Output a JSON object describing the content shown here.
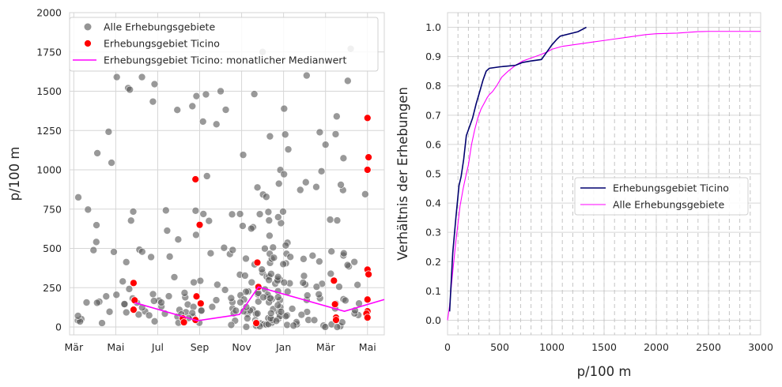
{
  "colors": {
    "all_points": "#5a5a5a",
    "ticino_points": "#ff0000",
    "median_line": "#ff00ff",
    "ecdf_ticino": "#00006e",
    "ecdf_all": "#ff00ff",
    "grid": "#d6d6d6"
  },
  "chart_data": [
    {
      "type": "scatter",
      "xlabel": "",
      "ylabel": "p/100 m",
      "ylim": [
        -50,
        2000
      ],
      "yticks": [
        0,
        250,
        500,
        750,
        1000,
        1250,
        1500,
        1750,
        2000
      ],
      "xlim_months": [
        -0.2,
        14.8
      ],
      "xticks": [
        {
          "pos": 0,
          "label": "Mär"
        },
        {
          "pos": 2,
          "label": "Mai"
        },
        {
          "pos": 4,
          "label": "Jul"
        },
        {
          "pos": 6,
          "label": "Sep"
        },
        {
          "pos": 8,
          "label": "Nov"
        },
        {
          "pos": 10,
          "label": "Jan"
        },
        {
          "pos": 12,
          "label": "Mär"
        },
        {
          "pos": 14,
          "label": "Mai"
        }
      ],
      "grid": true,
      "legend_position": "top-left",
      "series": [
        {
          "name": "Alle Erhebungsgebiete",
          "marker": "circle",
          "points": []
        },
        {
          "name": "Erhebungsgebiet Ticino",
          "marker": "circle",
          "points": [
            [
              2.85,
              280
            ],
            [
              2.9,
              170
            ],
            [
              2.85,
              110
            ],
            [
              5.2,
              55
            ],
            [
              5.25,
              30
            ],
            [
              5.8,
              940
            ],
            [
              5.85,
              195
            ],
            [
              5.8,
              45
            ],
            [
              6.0,
              650
            ],
            [
              6.05,
              150
            ],
            [
              8.75,
              410
            ],
            [
              8.8,
              255
            ],
            [
              8.7,
              25
            ],
            [
              12.4,
              295
            ],
            [
              12.45,
              145
            ],
            [
              12.5,
              60
            ],
            [
              12.5,
              45
            ],
            [
              14.0,
              1330
            ],
            [
              14.05,
              1080
            ],
            [
              14.0,
              1000
            ],
            [
              14.0,
              365
            ],
            [
              14.05,
              335
            ],
            [
              14.0,
              175
            ],
            [
              14.0,
              100
            ],
            [
              13.95,
              85
            ],
            [
              14.0,
              60
            ]
          ]
        },
        {
          "name": "Erhebungsgebiet Ticino: monatlicher Medianwert",
          "marker": "line",
          "points": [
            [
              2.9,
              155
            ],
            [
              5.9,
              40
            ],
            [
              7.9,
              80
            ],
            [
              8.8,
              255
            ],
            [
              12.9,
              100
            ],
            [
              14.8,
              175
            ]
          ]
        }
      ]
    },
    {
      "type": "line",
      "xlabel": "p/100 m",
      "ylabel": "Verhältnis der Erhebungen",
      "xlim": [
        0,
        3000
      ],
      "ylim": [
        -0.05,
        1.05
      ],
      "xticks": [
        0,
        500,
        1000,
        1500,
        2000,
        2500,
        3000
      ],
      "yticks": [
        0.0,
        0.1,
        0.2,
        0.3,
        0.4,
        0.5,
        0.6,
        0.7,
        0.8,
        0.9,
        1.0
      ],
      "vertical_dashed_lines": [
        100,
        200,
        300,
        400,
        500,
        600,
        700,
        800,
        900,
        1000,
        1100,
        1200,
        1300,
        1400,
        1500,
        1600,
        1700,
        1800,
        1900,
        2000,
        2100,
        2200,
        2300,
        2400,
        2500,
        2600,
        2700,
        2800,
        2900
      ],
      "grid": true,
      "legend_position": "center-right",
      "series": [
        {
          "name": "Erhebungsgebiet Ticino",
          "x": [
            20,
            50,
            80,
            110,
            130,
            155,
            180,
            200,
            240,
            275,
            300,
            340,
            370,
            400,
            500,
            650,
            720,
            800,
            900,
            940,
            1000,
            1050,
            1080,
            1250,
            1330
          ],
          "y": [
            0.03,
            0.23,
            0.35,
            0.46,
            0.49,
            0.55,
            0.63,
            0.65,
            0.69,
            0.74,
            0.77,
            0.82,
            0.85,
            0.86,
            0.865,
            0.87,
            0.88,
            0.885,
            0.89,
            0.91,
            0.94,
            0.96,
            0.97,
            0.985,
            1.0
          ]
        },
        {
          "name": "Alle Erhebungsgebiete",
          "x": [
            0,
            20,
            40,
            60,
            80,
            100,
            120,
            150,
            180,
            200,
            230,
            260,
            290,
            320,
            350,
            380,
            400,
            430,
            470,
            520,
            580,
            650,
            720,
            800,
            880,
            950,
            1000,
            1100,
            1200,
            1300,
            1400,
            1500,
            1600,
            1700,
            1800,
            1900,
            2000,
            2200,
            2400,
            2500,
            2700,
            3000
          ],
          "y": [
            0.0,
            0.05,
            0.13,
            0.2,
            0.27,
            0.33,
            0.39,
            0.45,
            0.5,
            0.53,
            0.6,
            0.65,
            0.69,
            0.72,
            0.74,
            0.76,
            0.77,
            0.78,
            0.8,
            0.83,
            0.85,
            0.87,
            0.885,
            0.895,
            0.905,
            0.915,
            0.925,
            0.935,
            0.94,
            0.945,
            0.95,
            0.955,
            0.96,
            0.965,
            0.97,
            0.975,
            0.978,
            0.98,
            0.985,
            0.986,
            0.986,
            0.986
          ]
        }
      ]
    }
  ]
}
